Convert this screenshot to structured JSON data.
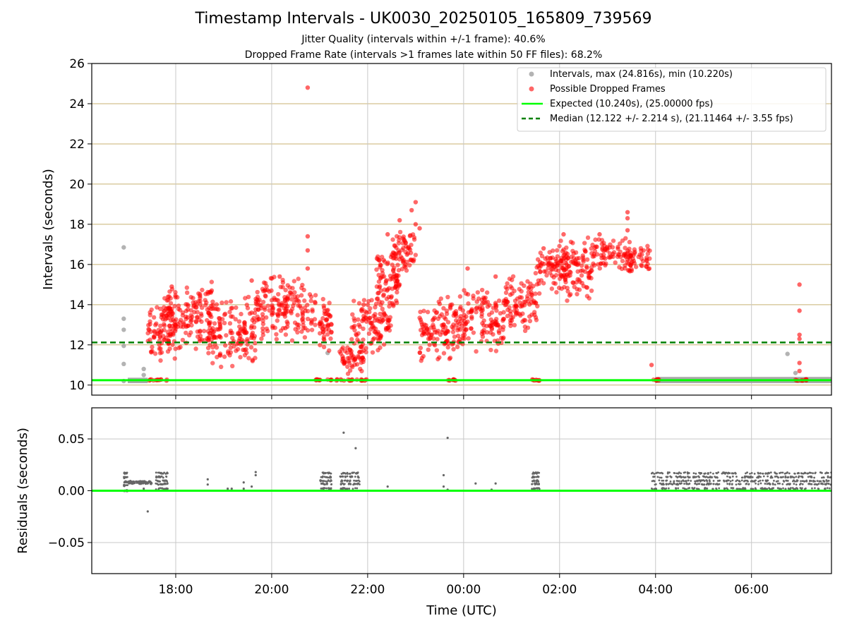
{
  "title": "Timestamp Intervals - UK0030_20250105_165809_739569",
  "subtitle_1": "Jitter Quality (intervals within +/-1 frame): 40.6%",
  "subtitle_2": "Dropped Frame Rate (intervals >1 frames late within 50 FF files): 68.2%",
  "colors": {
    "intervals": "#9a9a9a",
    "dropped": "#ff0000",
    "expected": "#00ff00",
    "median": "#008000",
    "residual_points": "#666666",
    "hgrid_top": "#c8b070",
    "grid": "#c8c8c8"
  },
  "chart_data": [
    {
      "type": "scatter",
      "panel": "top",
      "ylabel": "Intervals (seconds)",
      "ylim": [
        9.5,
        26
      ],
      "yticks": [
        10,
        12,
        14,
        16,
        18,
        20,
        22,
        24,
        26
      ],
      "xlim": [
        "16:15",
        "07:40"
      ],
      "xticks": [
        "18:00",
        "20:00",
        "22:00",
        "00:00",
        "02:00",
        "04:00",
        "06:00"
      ],
      "grid": "horizontal at y ticks, vertical at x ticks",
      "legend_position": "top-right",
      "legend": [
        "Intervals, max (24.816s), min (10.220s)",
        "Possible Dropped Frames",
        "Expected (10.240s), (25.00000 fps)",
        "Median (12.122 +/- 2.214 s), (21.11464 +/- 3.55 fps)"
      ],
      "expected_interval": 10.24,
      "median_interval": 12.122,
      "series": [
        {
          "name": "Possible Dropped Frames",
          "clusters": [
            {
              "x_start": "17:25",
              "x_end": "17:50",
              "y_low": 10.2,
              "y_high": 10.3
            },
            {
              "x_start": "17:25",
              "x_end": "18:00",
              "y_low": 11.0,
              "y_high": 14.0
            },
            {
              "x_start": "17:45",
              "x_end": "18:45",
              "y_low": 11.5,
              "y_high": 15.2
            },
            {
              "x_start": "18:40",
              "x_end": "19:40",
              "y_low": 10.7,
              "y_high": 14.5
            },
            {
              "x_start": "19:40",
              "x_end": "20:55",
              "y_low": 12.0,
              "y_high": 15.6
            },
            {
              "x_start": "20:55",
              "x_end": "21:15",
              "y_low": 10.2,
              "y_high": 10.3
            },
            {
              "x_start": "21:00",
              "x_end": "21:15",
              "y_low": 11.5,
              "y_high": 14.5
            },
            {
              "x_start": "21:20",
              "x_end": "22:00",
              "y_low": 10.2,
              "y_high": 10.3
            },
            {
              "x_start": "21:25",
              "x_end": "21:55",
              "y_low": 10.3,
              "y_high": 12.5
            },
            {
              "x_start": "21:40",
              "x_end": "22:30",
              "y_low": 11.5,
              "y_high": 14.5
            },
            {
              "x_start": "22:10",
              "x_end": "22:40",
              "y_low": 13.5,
              "y_high": 17.0
            },
            {
              "x_start": "22:30",
              "x_end": "23:00",
              "y_low": 15.3,
              "y_high": 17.8
            },
            {
              "x_start": "23:05",
              "x_end": "23:50",
              "y_low": 11.0,
              "y_high": 14.5
            },
            {
              "x_start": "23:40",
              "x_end": "23:50",
              "y_low": 10.2,
              "y_high": 10.3
            },
            {
              "x_start": "23:50",
              "x_end": "00:50",
              "y_low": 11.5,
              "y_high": 15.0
            },
            {
              "x_start": "00:50",
              "x_end": "01:35",
              "y_low": 12.5,
              "y_high": 15.5
            },
            {
              "x_start": "01:25",
              "x_end": "01:35",
              "y_low": 10.2,
              "y_high": 10.3
            },
            {
              "x_start": "01:30",
              "x_end": "02:10",
              "y_low": 14.5,
              "y_high": 17.0
            },
            {
              "x_start": "02:00",
              "x_end": "02:40",
              "y_low": 14.0,
              "y_high": 17.5
            },
            {
              "x_start": "02:40",
              "x_end": "03:30",
              "y_low": 15.5,
              "y_high": 17.5
            },
            {
              "x_start": "03:20",
              "x_end": "03:55",
              "y_low": 15.5,
              "y_high": 17.0
            },
            {
              "x_start": "03:55",
              "x_end": "04:05",
              "y_low": 10.2,
              "y_high": 10.3
            },
            {
              "x_start": "06:55",
              "x_end": "07:10",
              "y_low": 10.2,
              "y_high": 10.3
            }
          ],
          "points": [
            {
              "x": "17:55",
              "y": 14.9
            },
            {
              "x": "18:45",
              "y": 14.7
            },
            {
              "x": "19:35",
              "y": 15.2
            },
            {
              "x": "20:10",
              "y": 15.4
            },
            {
              "x": "20:45",
              "y": 24.8
            },
            {
              "x": "20:45",
              "y": 17.4
            },
            {
              "x": "20:45",
              "y": 16.7
            },
            {
              "x": "20:45",
              "y": 15.8
            },
            {
              "x": "21:55",
              "y": 14.0
            },
            {
              "x": "22:25",
              "y": 17.5
            },
            {
              "x": "22:40",
              "y": 18.2
            },
            {
              "x": "22:55",
              "y": 18.7
            },
            {
              "x": "23:00",
              "y": 19.1
            },
            {
              "x": "23:00",
              "y": 18.0
            },
            {
              "x": "23:05",
              "y": 17.8
            },
            {
              "x": "00:05",
              "y": 15.8
            },
            {
              "x": "00:40",
              "y": 15.4
            },
            {
              "x": "01:40",
              "y": 16.8
            },
            {
              "x": "02:05",
              "y": 17.5
            },
            {
              "x": "02:50",
              "y": 17.5
            },
            {
              "x": "03:25",
              "y": 18.6
            },
            {
              "x": "03:25",
              "y": 18.3
            },
            {
              "x": "03:25",
              "y": 17.7
            },
            {
              "x": "03:55",
              "y": 11.0
            },
            {
              "x": "07:00",
              "y": 15.0
            },
            {
              "x": "07:00",
              "y": 13.7
            },
            {
              "x": "07:00",
              "y": 12.5
            },
            {
              "x": "07:00",
              "y": 12.3
            },
            {
              "x": "07:00",
              "y": 11.1
            },
            {
              "x": "07:00",
              "y": 10.7
            }
          ]
        },
        {
          "name": "Intervals, max (24.816s), min (10.220s)",
          "points": [
            {
              "x": "16:55",
              "y": 16.85
            },
            {
              "x": "16:55",
              "y": 13.3
            },
            {
              "x": "16:55",
              "y": 12.75
            },
            {
              "x": "16:55",
              "y": 11.95
            },
            {
              "x": "16:55",
              "y": 11.05
            },
            {
              "x": "16:55",
              "y": 10.2
            },
            {
              "x": "17:20",
              "y": 10.8
            },
            {
              "x": "17:20",
              "y": 10.5
            },
            {
              "x": "21:10",
              "y": 11.6
            },
            {
              "x": "06:45",
              "y": 11.55
            },
            {
              "x": "06:55",
              "y": 10.6
            }
          ],
          "bands": [
            {
              "x_start": "17:00",
              "x_end": "17:25",
              "y_low": 10.2,
              "y_high": 10.26
            },
            {
              "x_start": "04:00",
              "x_end": "07:40",
              "y_low": 10.2,
              "y_high": 10.3
            }
          ]
        }
      ]
    },
    {
      "type": "scatter",
      "panel": "bottom",
      "xlabel": "Time (UTC)",
      "ylabel": "Residuals (seconds)",
      "ylim": [
        -0.08,
        0.08
      ],
      "yticks": [
        0.05,
        0.0,
        -0.05
      ],
      "ytick_labels": [
        "0.05",
        "0.00",
        "−0.05"
      ],
      "xlim": [
        "16:15",
        "07:40"
      ],
      "xticks": [
        "18:00",
        "20:00",
        "22:00",
        "00:00",
        "02:00",
        "04:00",
        "06:00"
      ],
      "grid": "on",
      "zero_line": 0,
      "clusters": [
        {
          "x_start": "16:55",
          "x_end": "17:00",
          "y_low": 0.0,
          "y_high": 0.017
        },
        {
          "x_start": "17:00",
          "x_end": "17:30",
          "y_low": 0.007,
          "y_high": 0.009
        },
        {
          "x_start": "17:35",
          "x_end": "17:50",
          "y_low": 0.002,
          "y_high": 0.017
        },
        {
          "x_start": "21:00",
          "x_end": "21:15",
          "y_low": 0.002,
          "y_high": 0.017
        },
        {
          "x_start": "21:25",
          "x_end": "21:50",
          "y_low": 0.002,
          "y_high": 0.017
        },
        {
          "x_start": "01:25",
          "x_end": "01:35",
          "y_low": 0.002,
          "y_high": 0.017
        },
        {
          "x_start": "03:55",
          "x_end": "07:40",
          "y_low": 0.002,
          "y_high": 0.017
        }
      ],
      "points": [
        {
          "x": "17:25",
          "y": -0.02
        },
        {
          "x": "17:20",
          "y": 0.002
        },
        {
          "x": "18:40",
          "y": 0.006
        },
        {
          "x": "18:40",
          "y": 0.011
        },
        {
          "x": "19:05",
          "y": 0.002
        },
        {
          "x": "19:10",
          "y": 0.002
        },
        {
          "x": "19:25",
          "y": 0.002
        },
        {
          "x": "19:25",
          "y": 0.008
        },
        {
          "x": "19:35",
          "y": 0.004
        },
        {
          "x": "19:40",
          "y": 0.018
        },
        {
          "x": "19:40",
          "y": 0.015
        },
        {
          "x": "21:30",
          "y": 0.056
        },
        {
          "x": "21:45",
          "y": 0.041
        },
        {
          "x": "22:25",
          "y": 0.004
        },
        {
          "x": "23:35",
          "y": 0.015
        },
        {
          "x": "23:35",
          "y": 0.004
        },
        {
          "x": "23:40",
          "y": 0.001
        },
        {
          "x": "23:40",
          "y": 0.051
        },
        {
          "x": "00:15",
          "y": 0.007
        },
        {
          "x": "00:35",
          "y": 0.001
        },
        {
          "x": "00:40",
          "y": 0.007
        }
      ]
    }
  ]
}
